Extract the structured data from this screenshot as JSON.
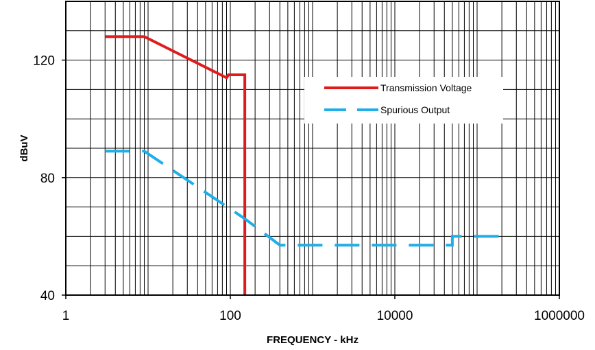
{
  "chart_data": {
    "type": "line",
    "title": "",
    "xlabel": "FREQUENCY - kHz",
    "ylabel": "dBuV",
    "x_scale": "log",
    "xlim": [
      1,
      1000000
    ],
    "ylim": [
      40,
      140
    ],
    "x_ticks": [
      {
        "value": 1,
        "label": "1"
      },
      {
        "value": 100,
        "label": "100"
      },
      {
        "value": 10000,
        "label": "10000"
      },
      {
        "value": 1000000,
        "label": "1000000"
      }
    ],
    "y_ticks": [
      {
        "value": 40,
        "label": "40"
      },
      {
        "value": 80,
        "label": "80"
      },
      {
        "value": 120,
        "label": "120"
      }
    ],
    "grid": true,
    "legend_position": "top-right",
    "series": [
      {
        "name": "Transmission Voltage",
        "color": "#e01b1b",
        "style": "solid",
        "points": [
          [
            3,
            128
          ],
          [
            9,
            128
          ],
          [
            90,
            114
          ],
          [
            95,
            115
          ],
          [
            150,
            115
          ],
          [
            150,
            40
          ]
        ]
      },
      {
        "name": "Spurious Output",
        "color": "#1eaee8",
        "style": "dashed",
        "points": [
          [
            3,
            89
          ],
          [
            9,
            89
          ],
          [
            150,
            66
          ],
          [
            400,
            57
          ],
          [
            50000,
            57
          ],
          [
            50000,
            60
          ],
          [
            250000,
            60
          ]
        ]
      }
    ]
  }
}
